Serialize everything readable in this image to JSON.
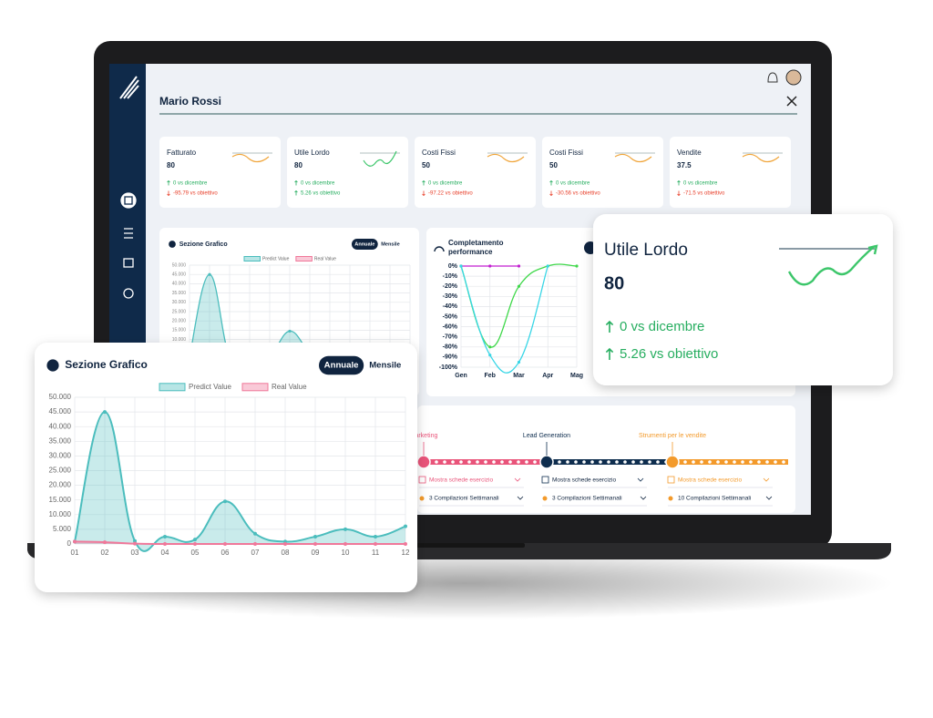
{
  "app": {
    "user": "Mario Rossi"
  },
  "kpis": [
    {
      "title": "Fatturato",
      "value": 80,
      "lines": [
        "0 vs dicembre",
        "-95.79 vs obiettivo"
      ],
      "colors": [
        "#27ae60",
        "#e8412c"
      ]
    },
    {
      "title": "Utile Lordo",
      "value": 80,
      "lines": [
        "0 vs dicembre",
        "5.26 vs obiettivo"
      ],
      "colors": [
        "#27ae60",
        "#27ae60"
      ]
    },
    {
      "title": "Costi Fissi",
      "value": 50,
      "lines": [
        "0 vs dicembre",
        "-97.22 vs obiettivo"
      ],
      "colors": [
        "#27ae60",
        "#e8412c"
      ]
    },
    {
      "title": "Costi Fissi",
      "value": 50,
      "lines": [
        "0 vs dicembre",
        "-30.56 vs obiettivo"
      ],
      "colors": [
        "#27ae60",
        "#e8412c"
      ]
    },
    {
      "title": "Vendite",
      "value": 37.5,
      "lines": [
        "0 vs dicembre",
        "-71.5 vs obiettivo"
      ],
      "colors": [
        "#27ae60",
        "#e8412c"
      ]
    }
  ],
  "grafico": {
    "type": "line",
    "title": "Sezione Grafico",
    "toggle": [
      "Annuale",
      "Mensile"
    ],
    "categories": [
      "01",
      "02",
      "03",
      "04",
      "05",
      "06",
      "07",
      "08",
      "09",
      "10",
      "11",
      "12"
    ],
    "series": [
      {
        "name": "Predict Value",
        "color": "#4bbdbd",
        "values": [
          800,
          45000,
          1000,
          2500,
          1500,
          14500,
          3500,
          800,
          2500,
          5000,
          2500,
          6000
        ]
      },
      {
        "name": "Real Value",
        "color": "#f0789a",
        "values": [
          800,
          600,
          100,
          0,
          0,
          0,
          0,
          0,
          0,
          0,
          0,
          0
        ]
      }
    ],
    "ylim": [
      0,
      50000
    ],
    "yticks": [
      0,
      {
        "value": 5000,
        "label": "5.000"
      },
      {
        "value": 10000,
        "label": "10.000"
      },
      {
        "value": 15000,
        "label": "15.000"
      },
      {
        "value": 20000,
        "label": "20.000"
      },
      {
        "value": 25000,
        "label": "25.000"
      },
      {
        "value": 30000,
        "label": "30.000"
      },
      {
        "value": 35000,
        "label": "35.000"
      },
      {
        "value": 40000,
        "label": "40.000"
      },
      {
        "value": 45000,
        "label": "45.000"
      },
      {
        "value": 50000,
        "label": "50.000"
      }
    ],
    "grid": true,
    "area": true,
    "legend": true
  },
  "completamento": {
    "type": "line",
    "title": [
      "Completamento",
      "performance"
    ],
    "categories": [
      "Gen",
      "Feb",
      "Mar",
      "Apr",
      "Mag"
    ],
    "series": [
      {
        "color": "#c21fd0",
        "values": [
          0,
          0,
          0,
          null,
          null
        ]
      },
      {
        "color": "#3fd84a",
        "values": [
          0,
          -80,
          -20,
          0,
          0
        ]
      },
      {
        "color": "#38d6e6",
        "values": [
          0,
          -88,
          -95,
          0,
          null
        ]
      }
    ],
    "ylim": [
      -100,
      0
    ],
    "yticks": [
      {
        "value": 0,
        "label": "0%"
      },
      {
        "value": -10,
        "label": "-10%"
      },
      {
        "value": -20,
        "label": "-20%"
      },
      {
        "value": -30,
        "label": "-30%"
      },
      {
        "value": -40,
        "label": "-40%"
      },
      {
        "value": -50,
        "label": "-50%"
      },
      {
        "value": -60,
        "label": "-60%"
      },
      {
        "value": -70,
        "label": "-70%"
      },
      {
        "value": -80,
        "label": "-80%"
      },
      {
        "value": -90,
        "label": "-90%"
      },
      {
        "value": -100,
        "label": "-100%"
      }
    ],
    "grid": true,
    "area": false,
    "legend": false
  },
  "highlight": {
    "title": "Utile Lordo",
    "value": 80,
    "lines": [
      "0 vs dicembre",
      "5.26 vs obiettivo"
    ]
  },
  "timeline": [
    {
      "label": "Marketing",
      "color": "#e9547a",
      "select": "Mostra schede esercizio",
      "count": "3 Compilazioni Settimanali"
    },
    {
      "label": "Lead Generation",
      "color": "#0e2d4e",
      "select": "Mostra schede esercizio",
      "count": "3 Compilazioni Settimanali"
    },
    {
      "label": "Strumenti per le vendite",
      "color": "#f39a2b",
      "select": "Mostra schede esercizio",
      "count": "10 Compilazioni Settimanali"
    }
  ]
}
